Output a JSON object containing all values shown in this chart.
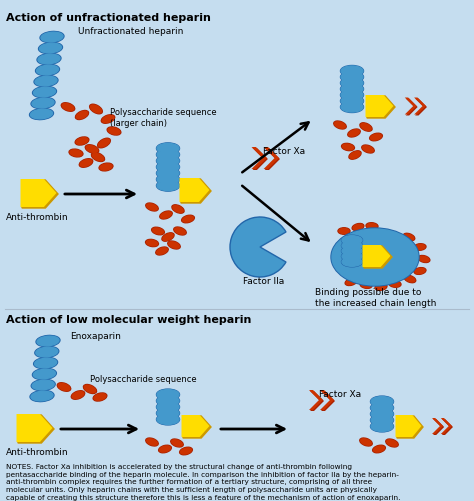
{
  "bg_color": "#c5ddef",
  "title1": "Action of unfractionated heparin",
  "title2": "Action of low molecular weight heparin",
  "notes_text": "NOTES. Factor Xa inhibition is accelerated by the structural change of anti-thrombin following\npentasaccharide binding of the heparin molecule. In comparison the inhibition of factor IIa by the heparin-\nanti-thrombin complex requires the further formation of a tertiary structure, comprising of all three\nmolecular units. Only heparin chains with the sufficient length of polysaccharide units are physically\ncapable of creating this structure therefore this is less a feature of the mechanism of action of enoxaparin.",
  "blue_color": "#4499cc",
  "red_color": "#cc3300",
  "yellow_color": "#ffdd00",
  "dark_red": "#aa2200"
}
